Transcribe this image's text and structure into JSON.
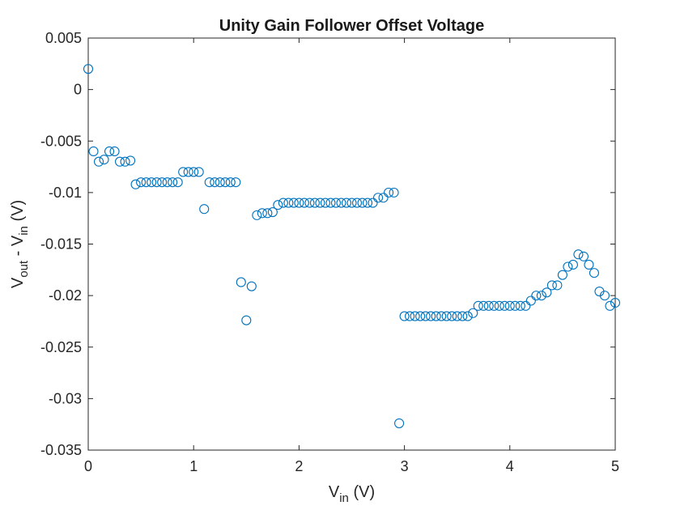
{
  "chart_data": {
    "type": "scatter",
    "title": "Unity Gain Follower Offset Voltage",
    "xlabel": {
      "main": "V",
      "sub": "in",
      "suffix": " (V)"
    },
    "ylabel": {
      "p1": "V",
      "s1": "out",
      "p2": " - V",
      "s2": "in",
      "p3": " (V)"
    },
    "xlim": [
      0,
      5
    ],
    "ylim": [
      -0.035,
      0.005
    ],
    "xticks": [
      0,
      1,
      2,
      3,
      4,
      5
    ],
    "xtick_labels": [
      "0",
      "1",
      "2",
      "3",
      "4",
      "5"
    ],
    "yticks": [
      0.005,
      0,
      -0.005,
      -0.01,
      -0.015,
      -0.02,
      -0.025,
      -0.03,
      -0.035
    ],
    "ytick_labels": [
      "0.005",
      "0",
      "-0.005",
      "-0.01",
      "-0.015",
      "-0.02",
      "-0.025",
      "-0.03",
      "-0.035"
    ],
    "grid": false,
    "marker_color": "#0072BD",
    "x": [
      0.0,
      0.05,
      0.1,
      0.15,
      0.2,
      0.25,
      0.3,
      0.35,
      0.4,
      0.45,
      0.5,
      0.55,
      0.6,
      0.65,
      0.7,
      0.75,
      0.8,
      0.85,
      0.9,
      0.95,
      1.0,
      1.05,
      1.1,
      1.15,
      1.2,
      1.25,
      1.3,
      1.35,
      1.4,
      1.45,
      1.5,
      1.55,
      1.6,
      1.65,
      1.7,
      1.75,
      1.8,
      1.85,
      1.9,
      1.95,
      2.0,
      2.05,
      2.1,
      2.15,
      2.2,
      2.25,
      2.3,
      2.35,
      2.4,
      2.45,
      2.5,
      2.55,
      2.6,
      2.65,
      2.7,
      2.75,
      2.8,
      2.85,
      2.9,
      2.95,
      3.0,
      3.05,
      3.1,
      3.15,
      3.2,
      3.25,
      3.3,
      3.35,
      3.4,
      3.45,
      3.5,
      3.55,
      3.6,
      3.65,
      3.7,
      3.75,
      3.8,
      3.85,
      3.9,
      3.95,
      4.0,
      4.05,
      4.1,
      4.15,
      4.2,
      4.25,
      4.3,
      4.35,
      4.4,
      4.45,
      4.5,
      4.55,
      4.6,
      4.65,
      4.7,
      4.75,
      4.8,
      4.85,
      4.9,
      4.95,
      5.0
    ],
    "y": [
      0.002,
      -0.006,
      -0.007,
      -0.0068,
      -0.006,
      -0.006,
      -0.007,
      -0.007,
      -0.0069,
      -0.0092,
      -0.009,
      -0.009,
      -0.009,
      -0.009,
      -0.009,
      -0.009,
      -0.009,
      -0.009,
      -0.008,
      -0.008,
      -0.008,
      -0.008,
      -0.0116,
      -0.009,
      -0.009,
      -0.009,
      -0.009,
      -0.009,
      -0.009,
      -0.0187,
      -0.0224,
      -0.0191,
      -0.0122,
      -0.012,
      -0.012,
      -0.0119,
      -0.0112,
      -0.011,
      -0.011,
      -0.011,
      -0.011,
      -0.011,
      -0.011,
      -0.011,
      -0.011,
      -0.011,
      -0.011,
      -0.011,
      -0.011,
      -0.011,
      -0.011,
      -0.011,
      -0.011,
      -0.011,
      -0.011,
      -0.0105,
      -0.0105,
      -0.01,
      -0.01,
      -0.0324,
      -0.022,
      -0.022,
      -0.022,
      -0.022,
      -0.022,
      -0.022,
      -0.022,
      -0.022,
      -0.022,
      -0.022,
      -0.022,
      -0.022,
      -0.022,
      -0.0217,
      -0.021,
      -0.021,
      -0.021,
      -0.021,
      -0.021,
      -0.021,
      -0.021,
      -0.021,
      -0.021,
      -0.021,
      -0.0205,
      -0.02,
      -0.02,
      -0.0197,
      -0.019,
      -0.019,
      -0.018,
      -0.0172,
      -0.017,
      -0.016,
      -0.0162,
      -0.017,
      -0.0178,
      -0.0196,
      -0.02,
      -0.021,
      -0.0207
    ]
  }
}
